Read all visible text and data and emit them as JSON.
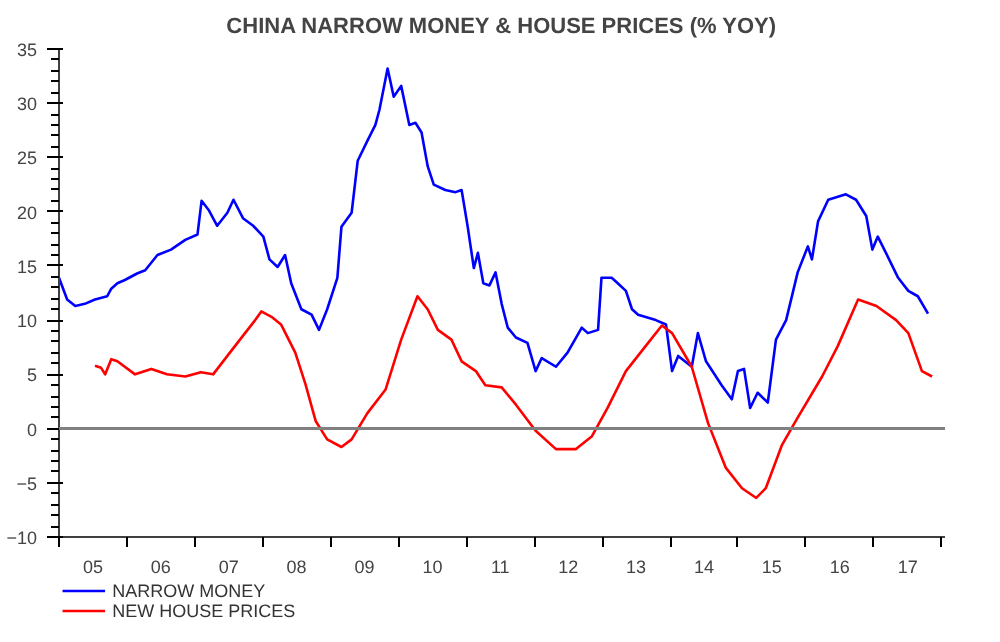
{
  "chart_data": {
    "type": "line",
    "title": "CHINA NARROW MONEY & HOUSE PRICES (% YOY)",
    "xlim": [
      2004.5,
      2017.55
    ],
    "xticks": [
      {
        "value": 2004.5,
        "label": null
      },
      {
        "value": 2005.5,
        "label": null
      },
      {
        "value": 2006.5,
        "label": null
      },
      {
        "value": 2007.5,
        "label": null
      },
      {
        "value": 2008.5,
        "label": null
      },
      {
        "value": 2009.5,
        "label": null
      },
      {
        "value": 2010.5,
        "label": null
      },
      {
        "value": 2011.5,
        "label": null
      },
      {
        "value": 2012.5,
        "label": null
      },
      {
        "value": 2013.5,
        "label": null
      },
      {
        "value": 2014.5,
        "label": null
      },
      {
        "value": 2015.5,
        "label": null
      },
      {
        "value": 2016.5,
        "label": null
      },
      {
        "value": 2017.5,
        "label": null
      },
      {
        "value": 2005,
        "label": "05"
      },
      {
        "value": 2006,
        "label": "06"
      },
      {
        "value": 2007,
        "label": "07"
      },
      {
        "value": 2008,
        "label": "08"
      },
      {
        "value": 2009,
        "label": "09"
      },
      {
        "value": 2010,
        "label": "10"
      },
      {
        "value": 2011,
        "label": "11"
      },
      {
        "value": 2012,
        "label": "12"
      },
      {
        "value": 2013,
        "label": "13"
      },
      {
        "value": 2014,
        "label": "14"
      },
      {
        "value": 2015,
        "label": "15"
      },
      {
        "value": 2016,
        "label": "16"
      },
      {
        "value": 2017,
        "label": "17"
      }
    ],
    "ylim": [
      -10,
      35
    ],
    "yticks": [
      -10,
      -5,
      0,
      5,
      10,
      15,
      20,
      25,
      30,
      35
    ],
    "grid": false,
    "legend": "bottom left",
    "marker": "none",
    "line_style": "solid",
    "ref_lines": [
      {
        "axis": "y",
        "value": 0,
        "color": "#808080"
      }
    ],
    "series": [
      {
        "name": "NARROW MONEY",
        "color": "#0000ff",
        "x": [
          2004.5,
          2004.62,
          2004.74,
          2004.88,
          2005.03,
          2005.21,
          2005.27,
          2005.36,
          2005.47,
          2005.65,
          2005.77,
          2005.95,
          2006.15,
          2006.36,
          2006.54,
          2006.6,
          2006.71,
          2006.83,
          2006.98,
          2007.07,
          2007.21,
          2007.36,
          2007.51,
          2007.6,
          2007.72,
          2007.83,
          2007.92,
          2008.07,
          2008.22,
          2008.33,
          2008.45,
          2008.6,
          2008.66,
          2008.81,
          2008.9,
          2009.04,
          2009.16,
          2009.22,
          2009.34,
          2009.43,
          2009.54,
          2009.66,
          2009.75,
          2009.84,
          2009.93,
          2010.02,
          2010.19,
          2010.34,
          2010.43,
          2010.52,
          2010.61,
          2010.67,
          2010.75,
          2010.84,
          2010.93,
          2011.02,
          2011.11,
          2011.23,
          2011.4,
          2011.52,
          2011.61,
          2011.82,
          2011.99,
          2012.2,
          2012.29,
          2012.44,
          2012.49,
          2012.64,
          2012.73,
          2012.85,
          2012.94,
          2013.03,
          2013.29,
          2013.44,
          2013.53,
          2013.62,
          2013.82,
          2013.91,
          2014.03,
          2014.26,
          2014.41,
          2014.5,
          2014.59,
          2014.68,
          2014.79,
          2014.94,
          2015.06,
          2015.21,
          2015.38,
          2015.53,
          2015.59,
          2015.68,
          2015.83,
          2016.09,
          2016.24,
          2016.39,
          2016.48,
          2016.56,
          2016.68,
          2016.86,
          2017.01,
          2017.15,
          2017.3
        ],
        "values": [
          13.9,
          11.9,
          11.3,
          11.5,
          11.9,
          12.2,
          12.9,
          13.4,
          13.7,
          14.3,
          14.6,
          16.0,
          16.5,
          17.4,
          17.9,
          21.0,
          20.1,
          18.7,
          19.9,
          21.1,
          19.4,
          18.7,
          17.7,
          15.6,
          14.9,
          16.0,
          13.4,
          11.0,
          10.5,
          9.1,
          11.0,
          13.9,
          18.6,
          19.9,
          24.7,
          26.5,
          28.0,
          29.4,
          33.2,
          30.6,
          31.6,
          28.0,
          28.2,
          27.3,
          24.2,
          22.5,
          22.0,
          21.8,
          22.0,
          18.6,
          14.8,
          16.2,
          13.4,
          13.2,
          14.4,
          11.5,
          9.3,
          8.4,
          7.9,
          5.3,
          6.5,
          5.7,
          7.0,
          9.3,
          8.8,
          9.1,
          13.9,
          13.9,
          13.4,
          12.7,
          11.0,
          10.5,
          10.0,
          9.6,
          5.3,
          6.7,
          5.7,
          8.8,
          6.2,
          4.0,
          2.7,
          5.3,
          5.5,
          1.9,
          3.3,
          2.4,
          8.2,
          10.0,
          14.4,
          16.8,
          15.6,
          19.1,
          21.1,
          21.6,
          21.1,
          19.6,
          16.5,
          17.7,
          16.2,
          13.9,
          12.7,
          12.2,
          10.6
        ]
      },
      {
        "name": "NEW HOUSE PRICES",
        "color": "#ff0000",
        "x": [
          2005.03,
          2005.12,
          2005.18,
          2005.27,
          2005.36,
          2005.62,
          2005.86,
          2006.09,
          2006.36,
          2006.59,
          2006.77,
          2006.98,
          2007.24,
          2007.39,
          2007.48,
          2007.63,
          2007.77,
          2007.98,
          2008.13,
          2008.28,
          2008.45,
          2008.66,
          2008.81,
          2009.04,
          2009.31,
          2009.54,
          2009.78,
          2009.93,
          2010.08,
          2010.28,
          2010.43,
          2010.64,
          2010.78,
          2011.02,
          2011.23,
          2011.52,
          2011.82,
          2012.11,
          2012.35,
          2012.58,
          2012.85,
          2013.14,
          2013.38,
          2013.53,
          2013.82,
          2014.06,
          2014.32,
          2014.56,
          2014.77,
          2014.91,
          2015.15,
          2015.38,
          2015.74,
          2015.97,
          2016.27,
          2016.54,
          2016.83,
          2017.01,
          2017.21,
          2017.36
        ],
        "values": [
          5.8,
          5.6,
          5.0,
          6.4,
          6.2,
          5.0,
          5.5,
          5.0,
          4.8,
          5.2,
          5.0,
          6.7,
          8.8,
          10.0,
          10.8,
          10.3,
          9.6,
          7.0,
          4.1,
          0.7,
          -1.0,
          -1.7,
          -1.0,
          1.4,
          3.6,
          8.2,
          12.2,
          11.0,
          9.1,
          8.2,
          6.2,
          5.3,
          4.0,
          3.8,
          2.2,
          -0.2,
          -1.9,
          -1.9,
          -0.7,
          1.9,
          5.3,
          7.6,
          9.5,
          8.8,
          5.7,
          0.5,
          -3.6,
          -5.5,
          -6.4,
          -5.5,
          -1.5,
          1.0,
          4.8,
          7.6,
          11.9,
          11.3,
          10.0,
          8.8,
          5.3,
          4.8
        ]
      }
    ]
  }
}
